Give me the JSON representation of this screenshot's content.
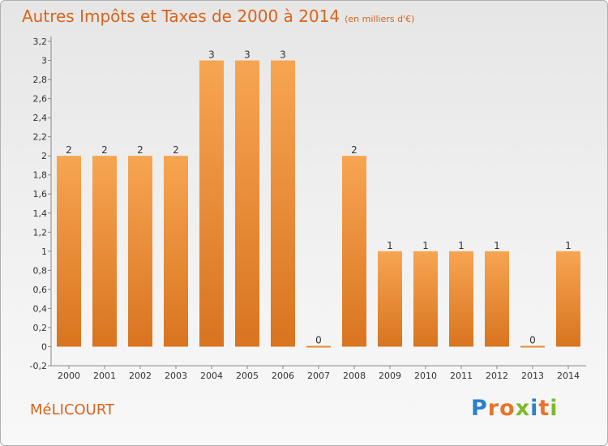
{
  "header": {
    "title": "Autres Impôts et Taxes de 2000 à 2014",
    "unit": "(en milliers d'€)"
  },
  "footer": {
    "commune": "MéLICOURT",
    "logo": "Proxiti"
  },
  "colors": {
    "bar": "#f5a04a",
    "bar_dark": "#d9741f",
    "title": "#d9641a",
    "axis": "#888888"
  },
  "chart_data": {
    "type": "bar",
    "categories": [
      "2000",
      "2001",
      "2002",
      "2003",
      "2004",
      "2005",
      "2006",
      "2007",
      "2008",
      "2009",
      "2010",
      "2011",
      "2012",
      "2013",
      "2014"
    ],
    "values": [
      2,
      2,
      2,
      2,
      3,
      3,
      3,
      0,
      2,
      1,
      1,
      1,
      1,
      0,
      1
    ],
    "data_labels": [
      "2",
      "2",
      "2",
      "2",
      "3",
      "3",
      "3",
      "0",
      "2",
      "1",
      "1",
      "1",
      "1",
      "0",
      "1"
    ],
    "title": "Autres Impôts et Taxes de 2000 à 2014",
    "xlabel": "",
    "ylabel": "",
    "ylim": [
      -0.2,
      3.2
    ],
    "yticks": [
      -0.2,
      0,
      0.2,
      0.4,
      0.6,
      0.8,
      1,
      1.2,
      1.4,
      1.6,
      1.8,
      2,
      2.2,
      2.4,
      2.6,
      2.8,
      3,
      3.2
    ],
    "ytick_labels": [
      "-0,2",
      "0",
      "0,2",
      "0,4",
      "0,6",
      "0,8",
      "1",
      "1,2",
      "1,4",
      "1,6",
      "1,8",
      "2",
      "2,2",
      "2,4",
      "2,6",
      "2,8",
      "3",
      "3,2"
    ],
    "grid": false,
    "legend": "none"
  }
}
